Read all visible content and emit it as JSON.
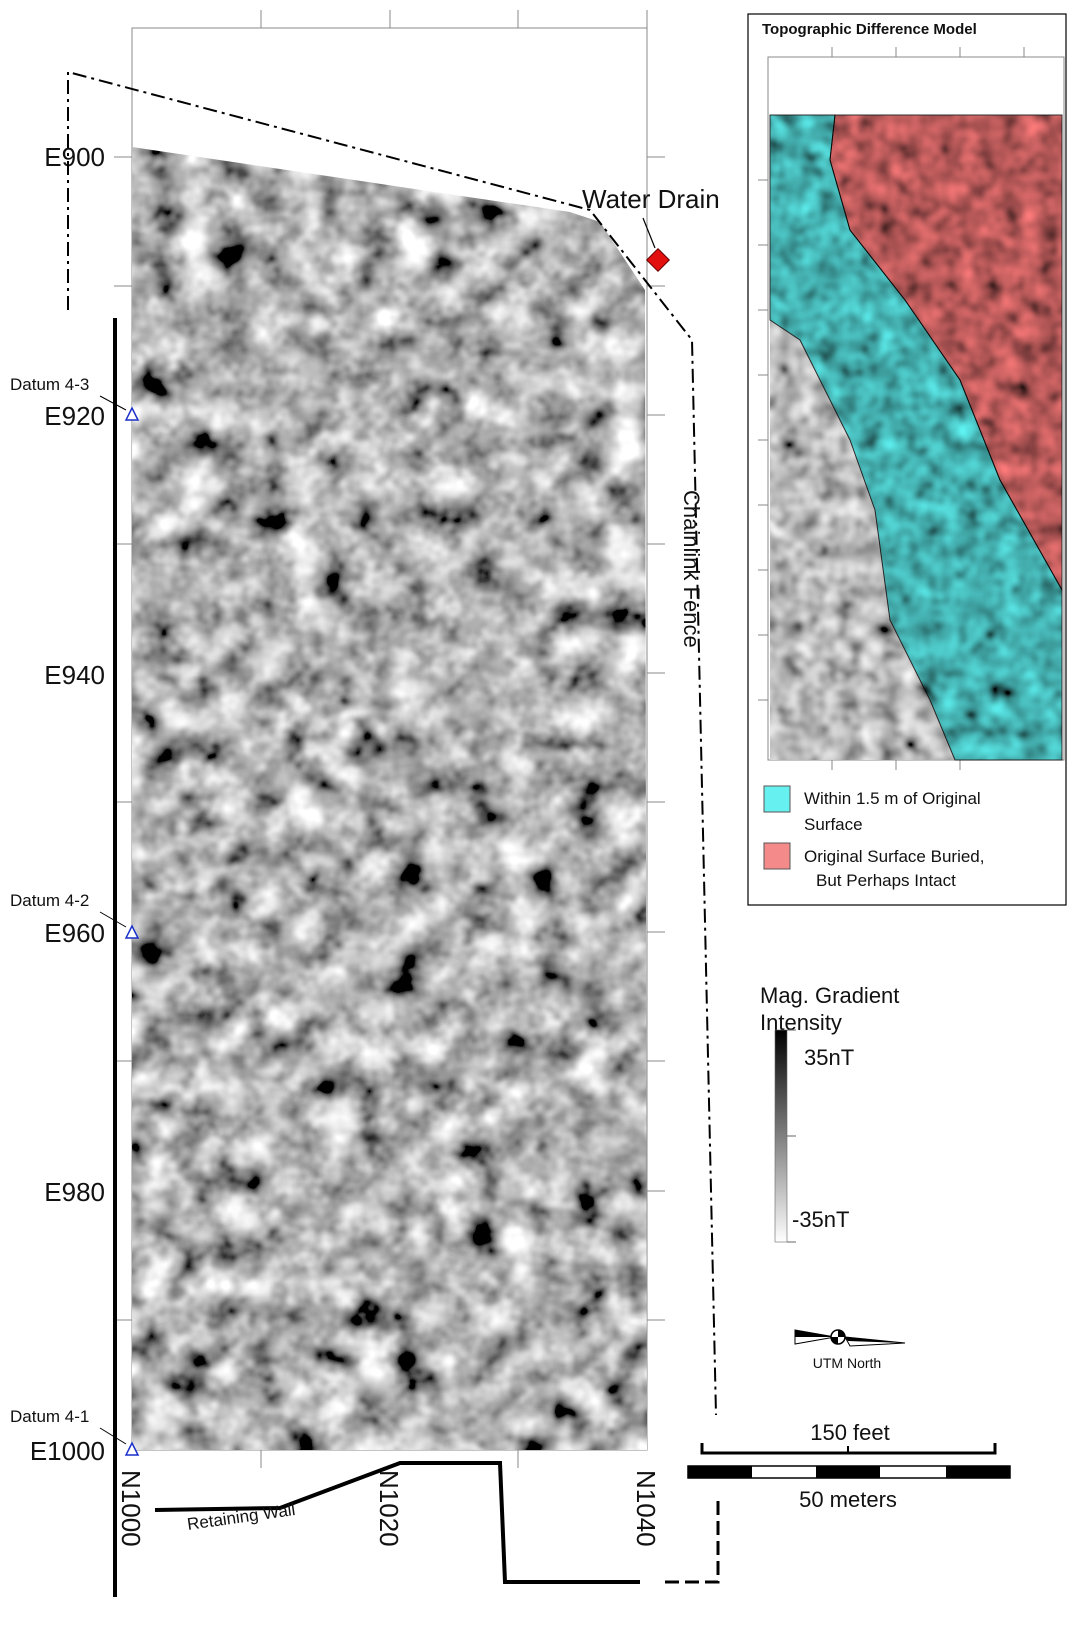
{
  "map": {
    "easting_labels": [
      "E900",
      "E920",
      "E940",
      "E960",
      "E980",
      "E1000"
    ],
    "northing_labels": [
      "N1000",
      "N1020",
      "N1040"
    ],
    "datums": [
      "Datum 4-3",
      "Datum 4-2",
      "Datum 4-1"
    ],
    "annotations": {
      "water_drain": "Water Drain",
      "fence": "Chainlink Fence",
      "wall": "Retaining Wall"
    },
    "inset": {
      "title": "Topographic Difference Model",
      "legend": [
        {
          "line1": "Within 1.5 m of Original",
          "line2": "Surface"
        },
        {
          "line1": "Original Surface Buried,",
          "line2": "But Perhaps Intact"
        }
      ]
    },
    "intensity_legend": {
      "line1": "Mag. Gradient",
      "line2": "Intensity",
      "max_label": "35nT",
      "min_label": "-35nT"
    },
    "north_arrow": "UTM North",
    "scale_bar": {
      "feet": "150 feet",
      "meters": "50 meters"
    }
  }
}
